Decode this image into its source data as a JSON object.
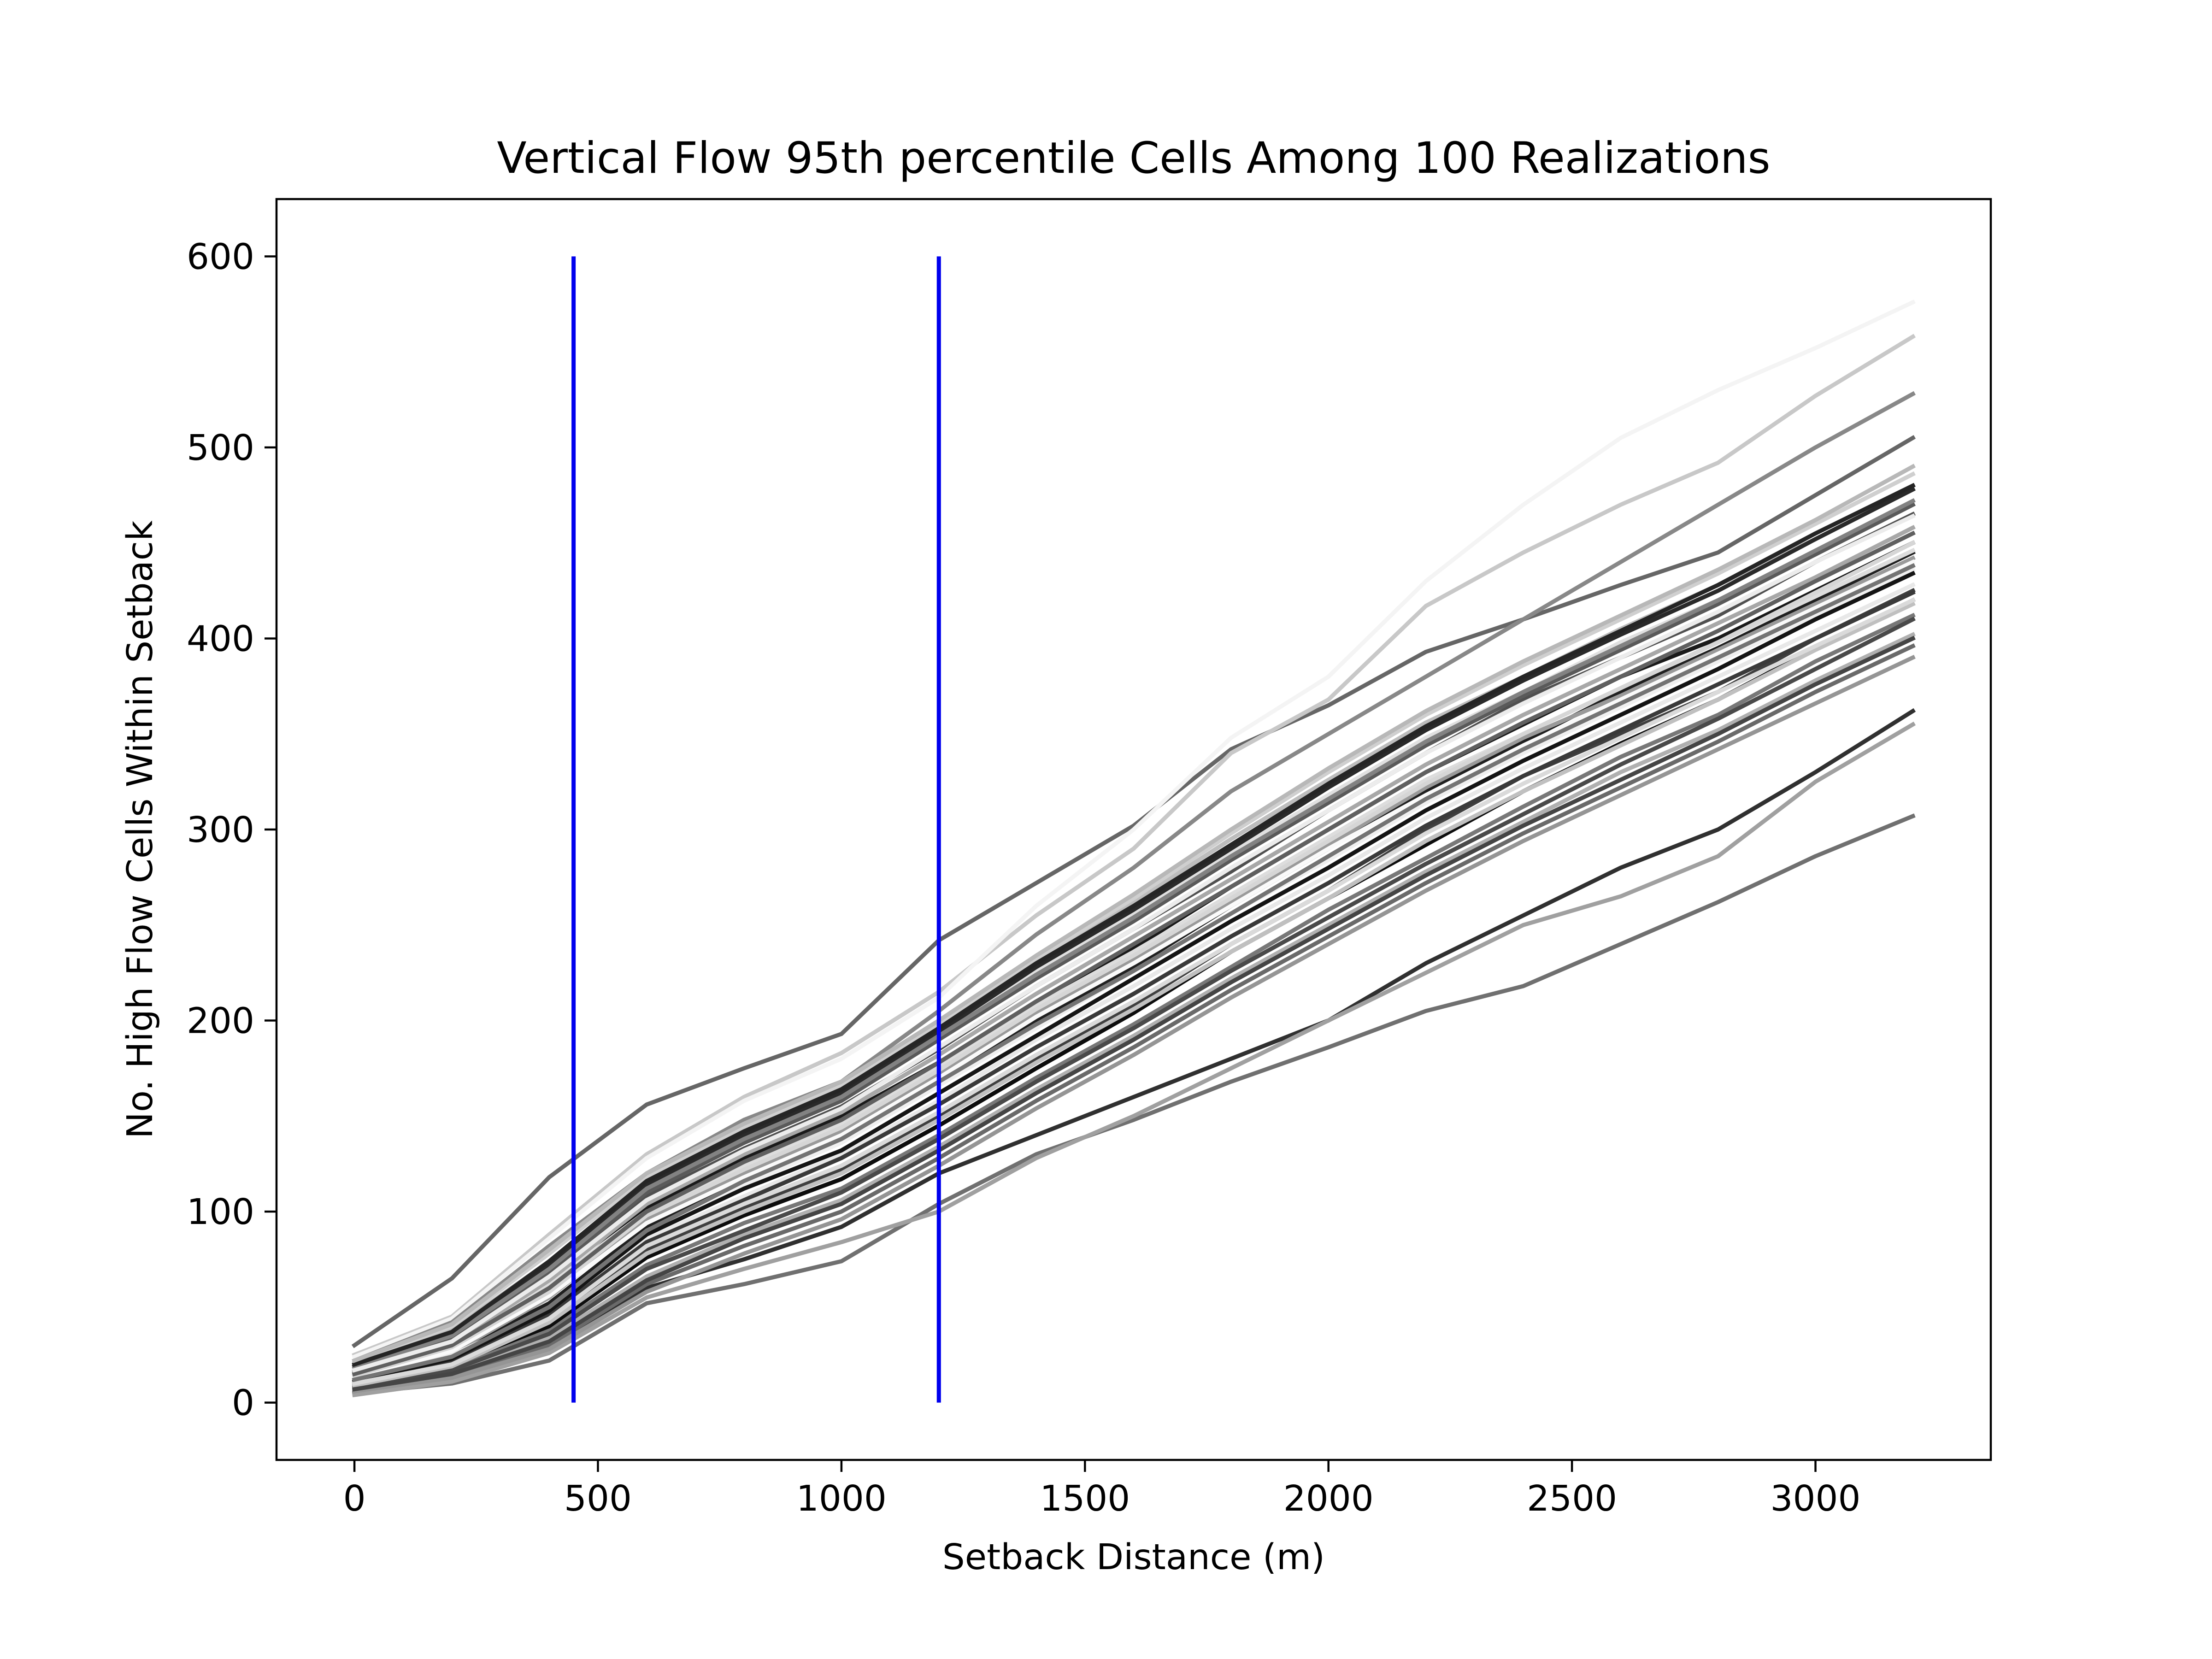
{
  "chart_data": {
    "type": "line",
    "title": "Vertical Flow 95th percentile Cells Among 100 Realizations",
    "xlabel": "Setback Distance (m)",
    "ylabel": "No. High Flow Cells Within Setback",
    "xlim": [
      -160,
      3360
    ],
    "ylim": [
      -30,
      630
    ],
    "xticks": [
      0,
      500,
      1000,
      1500,
      2000,
      2500,
      3000
    ],
    "yticks": [
      0,
      100,
      200,
      300,
      400,
      500,
      600
    ],
    "grid": false,
    "x": [
      0,
      200,
      400,
      600,
      800,
      1000,
      1200,
      1400,
      1600,
      1800,
      2000,
      2200,
      2400,
      2600,
      2800,
      3000,
      3200
    ],
    "vertical_lines": [
      {
        "x": 450,
        "y_range": [
          0,
          600
        ],
        "color": "#0000ee"
      },
      {
        "x": 1200,
        "y_range": [
          0,
          600
        ],
        "color": "#0000ee"
      }
    ],
    "series": [
      {
        "color": "#666666",
        "values": [
          30,
          65,
          118,
          156,
          175,
          193,
          242,
          272,
          302,
          342,
          365,
          393,
          410,
          428,
          445,
          475,
          505
        ]
      },
      {
        "color": "#c8c8c8",
        "values": [
          25,
          45,
          88,
          130,
          160,
          183,
          215,
          255,
          290,
          340,
          368,
          417,
          445,
          470,
          492,
          527,
          558
        ]
      },
      {
        "color": "#f4f4f4",
        "values": [
          24,
          44,
          86,
          128,
          158,
          180,
          212,
          260,
          300,
          348,
          380,
          430,
          470,
          505,
          530,
          552,
          576
        ]
      },
      {
        "color": "#888888",
        "values": [
          22,
          42,
          82,
          120,
          148,
          168,
          205,
          245,
          280,
          320,
          350,
          380,
          410,
          440,
          470,
          500,
          528
        ]
      },
      {
        "color": "#707070",
        "values": [
          5,
          10,
          22,
          52,
          62,
          74,
          104,
          130,
          148,
          168,
          186,
          205,
          218,
          240,
          262,
          286,
          307
        ]
      },
      {
        "color": "#303030",
        "values": [
          5,
          12,
          30,
          60,
          75,
          92,
          120,
          140,
          160,
          180,
          200,
          230,
          255,
          280,
          300,
          330,
          362
        ]
      },
      {
        "color": "#a0a0a0",
        "values": [
          4,
          11,
          26,
          55,
          70,
          84,
          100,
          128,
          150,
          175,
          200,
          225,
          250,
          265,
          286,
          325,
          355
        ]
      },
      {
        "color": "#1a1a1a",
        "values": [
          14,
          28,
          60,
          102,
          128,
          150,
          178,
          210,
          238,
          270,
          300,
          330,
          355,
          380,
          400,
          425,
          450
        ]
      },
      {
        "color": "#505050",
        "values": [
          16,
          32,
          66,
          108,
          133,
          155,
          185,
          218,
          248,
          278,
          310,
          340,
          368,
          390,
          412,
          440,
          465
        ]
      },
      {
        "color": "#404040",
        "values": [
          10,
          22,
          44,
          80,
          102,
          122,
          150,
          180,
          208,
          240,
          268,
          300,
          328,
          350,
          372,
          400,
          425
        ]
      },
      {
        "color": "#e0e0e0",
        "values": [
          18,
          34,
          70,
          112,
          138,
          160,
          192,
          226,
          256,
          288,
          318,
          348,
          372,
          398,
          420,
          445,
          470
        ]
      },
      {
        "color": "#202020",
        "values": [
          12,
          26,
          52,
          92,
          118,
          140,
          168,
          200,
          228,
          260,
          290,
          320,
          346,
          372,
          395,
          420,
          445
        ]
      },
      {
        "color": "#bdbdbd",
        "values": [
          20,
          38,
          74,
          116,
          142,
          165,
          196,
          230,
          262,
          295,
          326,
          356,
          380,
          405,
          428,
          452,
          478
        ]
      },
      {
        "color": "#787878",
        "values": [
          8,
          18,
          38,
          72,
          94,
          112,
          140,
          170,
          198,
          228,
          258,
          285,
          312,
          338,
          360,
          388,
          412
        ]
      },
      {
        "color": "#dddddd",
        "values": [
          15,
          30,
          62,
          100,
          124,
          146,
          176,
          208,
          236,
          266,
          296,
          326,
          350,
          374,
          398,
          422,
          446
        ]
      },
      {
        "color": "#0d0d0d",
        "values": [
          9,
          20,
          40,
          76,
          98,
          117,
          145,
          175,
          204,
          236,
          264,
          292,
          320,
          345,
          368,
          395,
          420
        ]
      },
      {
        "color": "#9a9a9a",
        "values": [
          13,
          26,
          55,
          96,
          120,
          142,
          172,
          204,
          232,
          262,
          292,
          322,
          348,
          370,
          394,
          418,
          442
        ]
      },
      {
        "color": "#f0f0f0",
        "values": [
          11,
          24,
          50,
          90,
          114,
          136,
          166,
          196,
          226,
          256,
          284,
          314,
          340,
          364,
          388,
          412,
          436
        ]
      },
      {
        "color": "#5a5a5a",
        "values": [
          17,
          33,
          68,
          110,
          136,
          158,
          190,
          222,
          252,
          284,
          314,
          344,
          370,
          394,
          418,
          444,
          470
        ]
      },
      {
        "color": "#b0b0b0",
        "values": [
          7,
          16,
          34,
          66,
          88,
          106,
          134,
          164,
          192,
          222,
          250,
          278,
          304,
          330,
          352,
          378,
          402
        ]
      },
      {
        "color": "#2a2a2a",
        "values": [
          19,
          36,
          72,
          114,
          140,
          162,
          194,
          228,
          258,
          290,
          322,
          352,
          378,
          402,
          425,
          452,
          478
        ]
      },
      {
        "color": "#e8e8e8",
        "values": [
          12,
          25,
          48,
          86,
          108,
          130,
          158,
          190,
          218,
          248,
          276,
          306,
          332,
          356,
          380,
          404,
          428
        ]
      },
      {
        "color": "#6a6a6a",
        "values": [
          6,
          14,
          30,
          62,
          82,
          100,
          128,
          158,
          186,
          216,
          244,
          272,
          298,
          322,
          346,
          372,
          396
        ]
      },
      {
        "color": "#cfcfcf",
        "values": [
          21,
          40,
          78,
          118,
          144,
          166,
          198,
          232,
          264,
          298,
          330,
          360,
          386,
          410,
          434,
          460,
          486
        ]
      },
      {
        "color": "#3a3a3a",
        "values": [
          10,
          21,
          46,
          84,
          106,
          128,
          156,
          186,
          214,
          244,
          272,
          302,
          328,
          352,
          376,
          400,
          424
        ]
      },
      {
        "color": "#a8a8a8",
        "values": [
          16,
          31,
          64,
          104,
          130,
          152,
          182,
          214,
          244,
          274,
          304,
          334,
          360,
          384,
          408,
          432,
          458
        ]
      },
      {
        "color": "#fafafa",
        "values": [
          13,
          27,
          56,
          94,
          118,
          140,
          170,
          202,
          230,
          260,
          290,
          318,
          344,
          368,
          392,
          416,
          440
        ]
      },
      {
        "color": "#4a4a4a",
        "values": [
          8,
          17,
          36,
          70,
          90,
          110,
          138,
          168,
          196,
          226,
          254,
          282,
          308,
          334,
          358,
          384,
          410
        ]
      },
      {
        "color": "#d6d6d6",
        "values": [
          14,
          29,
          58,
          98,
          122,
          144,
          174,
          206,
          234,
          264,
          294,
          324,
          350,
          374,
          398,
          424,
          450
        ]
      },
      {
        "color": "#828282",
        "values": [
          18,
          35,
          70,
          112,
          138,
          160,
          192,
          224,
          254,
          286,
          316,
          346,
          372,
          396,
          420,
          446,
          472
        ]
      },
      {
        "color": "#151515",
        "values": [
          11,
          23,
          48,
          88,
          112,
          132,
          162,
          192,
          222,
          252,
          280,
          310,
          336,
          360,
          384,
          410,
          434
        ]
      },
      {
        "color": "#c0c0c0",
        "values": [
          9,
          19,
          42,
          78,
          100,
          120,
          148,
          178,
          206,
          236,
          264,
          294,
          320,
          344,
          368,
          394,
          418
        ]
      },
      {
        "color": "#606060",
        "values": [
          15,
          30,
          60,
          100,
          126,
          148,
          178,
          210,
          240,
          270,
          300,
          330,
          356,
          380,
          404,
          430,
          455
        ]
      },
      {
        "color": "#ececec",
        "values": [
          17,
          32,
          66,
          106,
          132,
          154,
          186,
          218,
          248,
          280,
          310,
          340,
          366,
          390,
          414,
          440,
          464
        ]
      },
      {
        "color": "#959595",
        "values": [
          6,
          13,
          28,
          58,
          78,
          96,
          124,
          154,
          182,
          212,
          240,
          268,
          294,
          318,
          342,
          366,
          390
        ]
      },
      {
        "color": "#252525",
        "values": [
          20,
          37,
          74,
          116,
          142,
          164,
          196,
          230,
          260,
          292,
          324,
          354,
          380,
          404,
          428,
          455,
          480
        ]
      },
      {
        "color": "#dadada",
        "values": [
          10,
          20,
          44,
          82,
          104,
          124,
          152,
          182,
          210,
          240,
          268,
          298,
          324,
          348,
          372,
          396,
          420
        ]
      },
      {
        "color": "#747474",
        "values": [
          12,
          24,
          50,
          90,
          116,
          138,
          168,
          198,
          226,
          256,
          286,
          316,
          342,
          366,
          390,
          414,
          438
        ]
      },
      {
        "color": "#b8b8b8",
        "values": [
          22,
          41,
          80,
          120,
          146,
          168,
          200,
          234,
          266,
          300,
          332,
          362,
          388,
          412,
          436,
          462,
          490
        ]
      },
      {
        "color": "#454545",
        "values": [
          7,
          15,
          32,
          64,
          86,
          104,
          132,
          162,
          190,
          220,
          248,
          276,
          302,
          326,
          350,
          376,
          400
        ]
      }
    ]
  }
}
